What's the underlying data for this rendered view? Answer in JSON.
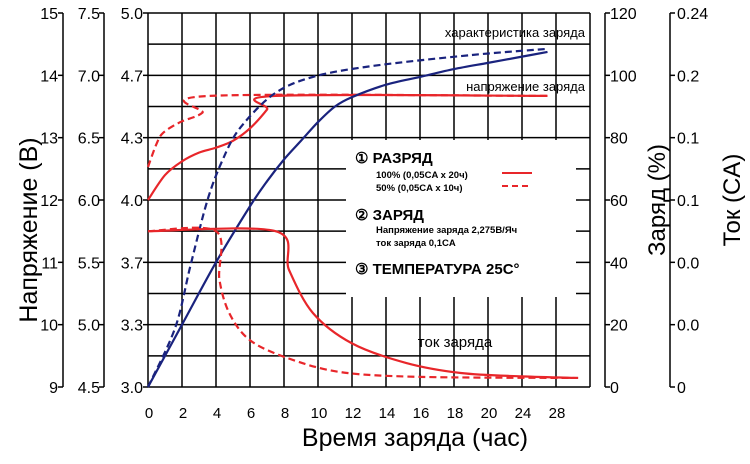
{
  "chart_data": {
    "type": "line",
    "xlabel": "Время заряда (час)",
    "x_ticks": [
      "0",
      "2",
      "4",
      "6",
      "8",
      "10",
      "12",
      "14",
      "16",
      "18",
      "20",
      "24",
      "28"
    ],
    "grid": true,
    "y_axes": [
      {
        "id": "v12",
        "label": "Напряжение (В)",
        "range": [
          9,
          15
        ],
        "ticks": [
          "15",
          "14",
          "13",
          "12",
          "11",
          "10",
          "9"
        ]
      },
      {
        "id": "v6",
        "label": "",
        "range": [
          4.5,
          7.5
        ],
        "ticks": [
          "7.5",
          "7.0",
          "6.5",
          "6.0",
          "5.5",
          "5.0",
          "4.5"
        ]
      },
      {
        "id": "v2",
        "label": "",
        "range": [
          3.0,
          5.0
        ],
        "ticks": [
          "5.0",
          "4.7",
          "4.3",
          "4.0",
          "3.7",
          "3.3",
          "3.0"
        ]
      },
      {
        "id": "charge",
        "label": "Заряд (%)",
        "range": [
          0,
          120
        ],
        "ticks": [
          "120",
          "100",
          "80",
          "60",
          "40",
          "20",
          "0"
        ]
      },
      {
        "id": "current",
        "label": "Ток (CA)",
        "range": [
          0,
          0.24
        ],
        "ticks": [
          "0.24",
          "0.2",
          "0.1",
          "0.1",
          "0.0",
          "0.0",
          "0"
        ]
      }
    ],
    "series": [
      {
        "group": "voltage",
        "axis": "v12",
        "style": "solid",
        "color": "#e8262a",
        "x": [
          0,
          1,
          2,
          3,
          4,
          5,
          6,
          7,
          7.5,
          23.5
        ],
        "y": [
          12.0,
          12.4,
          12.62,
          12.76,
          12.84,
          12.95,
          13.15,
          13.45,
          13.67,
          13.67
        ]
      },
      {
        "group": "voltage",
        "axis": "v12",
        "style": "dashed",
        "color": "#e8262a",
        "x": [
          0,
          0.5,
          0.9,
          1.9,
          3.2,
          3.6,
          23.5
        ],
        "y": [
          12.53,
          12.9,
          13.08,
          13.25,
          13.4,
          13.67,
          13.67
        ]
      },
      {
        "group": "charge",
        "axis": "charge",
        "style": "solid",
        "color": "#1a237e",
        "x": [
          0,
          2,
          4,
          6,
          7,
          8,
          9,
          10,
          11,
          12,
          14,
          16,
          18,
          20,
          22,
          23.5
        ],
        "y": [
          0,
          20,
          40,
          58,
          66,
          73,
          79,
          85,
          90,
          93,
          97,
          99.5,
          102,
          104,
          106,
          107.5
        ]
      },
      {
        "group": "charge",
        "axis": "charge",
        "style": "dashed",
        "color": "#1a237e",
        "x": [
          0,
          1.6,
          2.5,
          3.5,
          4.4,
          5.4,
          7.4,
          9.7,
          13.2,
          19,
          23.5
        ],
        "y": [
          0,
          19,
          39,
          60,
          73,
          83,
          94,
          99.5,
          103,
          106.5,
          108.5
        ]
      },
      {
        "group": "current",
        "axis": "current",
        "style": "solid",
        "color": "#e8262a",
        "x": [
          0,
          7.5,
          8.3,
          9.7,
          12,
          15.2,
          18.4,
          22,
          25.3
        ],
        "y": [
          0.1,
          0.1,
          0.075,
          0.0475,
          0.028,
          0.0154,
          0.009,
          0.0068,
          0.0058
        ]
      },
      {
        "group": "current",
        "axis": "current",
        "style": "dashed",
        "color": "#e8262a",
        "x": [
          0,
          4,
          4.2,
          4.8,
          6,
          8.2,
          11.3,
          16,
          25.3
        ],
        "y": [
          0.1,
          0.1,
          0.069,
          0.047,
          0.03,
          0.0186,
          0.0096,
          0.0065,
          0.0058
        ]
      }
    ],
    "annotations": {
      "charge_curve": "характеристика заряда",
      "charge_voltage": "напряжение заряда",
      "charge_current": "ток заряда"
    },
    "legend": {
      "placement": "center-right",
      "item1_title": "① РАЗРЯД",
      "item1_solid": "100% (0,05CA x 20ч)",
      "item1_dashed": "50% (0,05CA x 10ч)",
      "item2_title": "② ЗАРЯД",
      "item2_line1": "Напряжение заряда 2,275В/Яч",
      "item2_line2": "ток заряда 0,1CA",
      "item3_title": "③ ТЕМПЕРАТУРА 25С°"
    }
  }
}
